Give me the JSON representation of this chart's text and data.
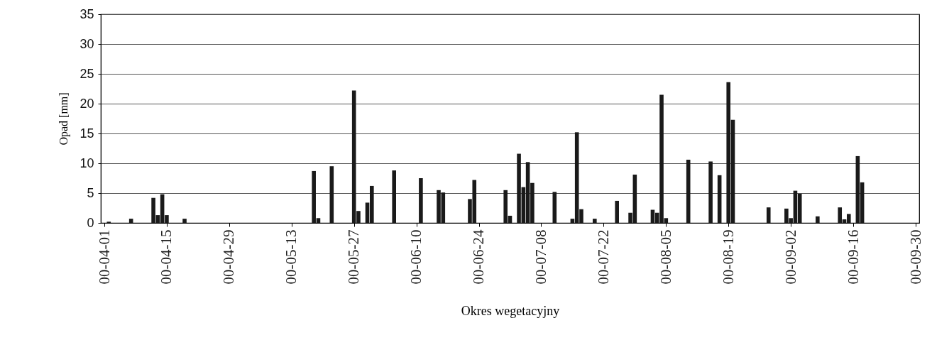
{
  "chart_data": {
    "type": "bar",
    "xlabel": "Okres wegetacyjny",
    "ylabel": "Opad [mm]",
    "x": [
      "--04-02",
      "--04-07",
      "--04-12",
      "--04-13",
      "--04-14",
      "--04-15",
      "--04-19",
      "--05-18",
      "--05-19",
      "--05-22",
      "--05-27",
      "--05-28",
      "--05-30",
      "--05-31",
      "--06-05",
      "--06-11",
      "--06-15",
      "--06-16",
      "--06-22",
      "--06-23",
      "--06-30",
      "--07-01",
      "--07-03",
      "--07-04",
      "--07-05",
      "--07-06",
      "--07-11",
      "--07-15",
      "--07-16",
      "--07-17",
      "--07-20",
      "--07-25",
      "--07-28",
      "--07-29",
      "--08-02",
      "--08-03",
      "--08-04",
      "--08-05",
      "--08-10",
      "--08-15",
      "--08-17",
      "--08-19",
      "--08-20",
      "--08-28",
      "--09-01",
      "--09-02",
      "--09-03",
      "--09-04",
      "--09-08",
      "--09-13",
      "--09-14",
      "--09-15",
      "--09-17",
      "--09-18"
    ],
    "values": [
      0.2,
      0.7,
      4.2,
      1.3,
      4.8,
      1.3,
      0.7,
      8.7,
      0.8,
      9.5,
      22.2,
      2.0,
      3.4,
      6.2,
      8.8,
      7.5,
      5.5,
      5.1,
      4.0,
      7.2,
      5.5,
      1.2,
      11.6,
      6.0,
      10.2,
      6.7,
      5.2,
      0.7,
      15.2,
      2.3,
      0.7,
      3.7,
      1.7,
      8.1,
      2.2,
      1.7,
      21.5,
      0.8,
      10.6,
      10.3,
      8.0,
      23.6,
      17.3,
      2.6,
      2.4,
      0.8,
      5.4,
      4.9,
      1.1,
      2.6,
      0.6,
      1.5,
      11.2,
      6.8
    ],
    "color": "#1a1a1a",
    "xlim": [
      "--04-01",
      "--09-30"
    ],
    "xticks": [
      {
        "value": "--04-01",
        "label": "00-04-01"
      },
      {
        "value": "--04-15",
        "label": "00-04-15"
      },
      {
        "value": "--04-29",
        "label": "00-04-29"
      },
      {
        "value": "--05-13",
        "label": "00-05-13"
      },
      {
        "value": "--05-27",
        "label": "00-05-27"
      },
      {
        "value": "--06-10",
        "label": "00-06-10"
      },
      {
        "value": "--06-24",
        "label": "00-06-24"
      },
      {
        "value": "--07-08",
        "label": "00-07-08"
      },
      {
        "value": "--07-22",
        "label": "00-07-22"
      },
      {
        "value": "--08-05",
        "label": "00-08-05"
      },
      {
        "value": "--08-19",
        "label": "00-08-19"
      },
      {
        "value": "--09-02",
        "label": "00-09-02"
      },
      {
        "value": "--09-16",
        "label": "00-09-16"
      },
      {
        "value": "--09-30",
        "label": "00-09-30"
      }
    ],
    "ylim": [
      0,
      35
    ],
    "yticks": [
      0,
      5,
      10,
      15,
      20,
      25,
      30,
      35
    ],
    "grid": "y"
  }
}
